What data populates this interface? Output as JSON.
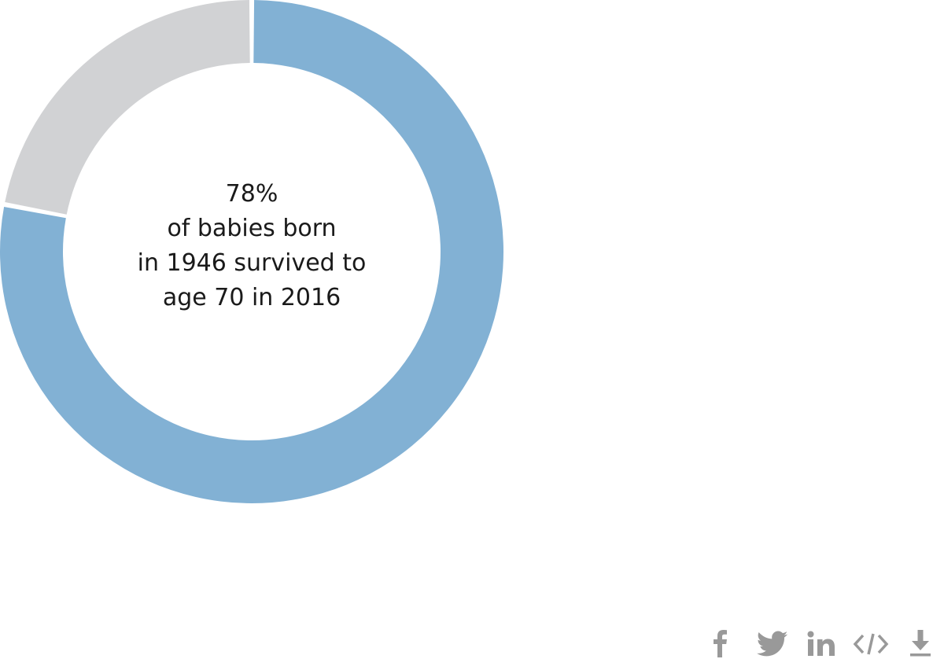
{
  "chart_data": {
    "type": "pie",
    "variant": "donut",
    "slices": [
      {
        "label": "survived",
        "value": 78,
        "color": "#82b1d4"
      },
      {
        "label": "",
        "value": 22,
        "color": "#d1d2d4"
      }
    ],
    "title": "",
    "center_text": [
      "78%",
      "of babies born",
      "in 1946 survived to",
      "age 70 in 2016"
    ]
  },
  "share": {
    "icons": [
      {
        "name": "facebook-icon"
      },
      {
        "name": "twitter-icon"
      },
      {
        "name": "linkedin-icon"
      },
      {
        "name": "embed-code-icon"
      },
      {
        "name": "download-icon"
      }
    ],
    "icon_color": "#999999"
  }
}
